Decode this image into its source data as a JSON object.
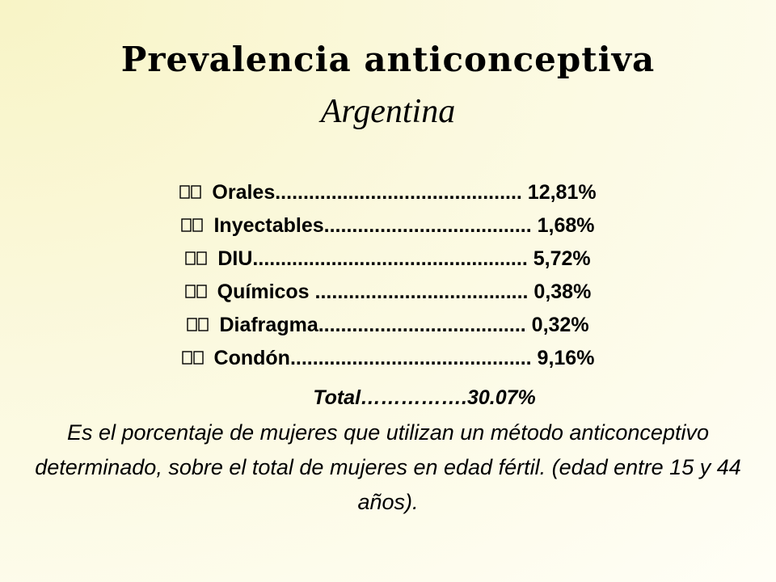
{
  "slide": {
    "title": "Prevalencia anticonceptiva",
    "subtitle": "Argentina",
    "bullet_icon": "double-box-bullet-icon",
    "items": [
      {
        "text": "Orales............................................ 12,81%"
      },
      {
        "text": "Inyectables..................................... 1,68%"
      },
      {
        "text": "DIU................................................. 5,72%"
      },
      {
        "text": "Químicos ...................................... 0,38%"
      },
      {
        "text": "Diafragma..................................... 0,32%"
      },
      {
        "text": "Condón........................................... 9,16%"
      }
    ],
    "total": "Total…………….30.07%",
    "note": "Es el porcentaje de mujeres que utilizan un método anticonceptivo determinado, sobre el total de mujeres en edad fértil. (edad entre 15 y 44 años)."
  }
}
